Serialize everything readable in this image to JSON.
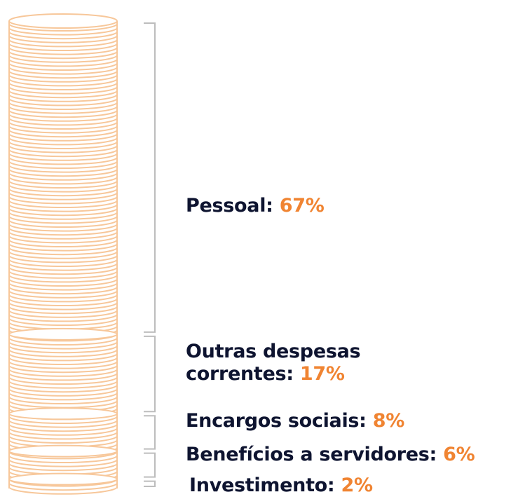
{
  "colors": {
    "coin_stroke": "#f7c79a",
    "bracket": "#bdbdbd",
    "label_text": "#0e1430",
    "percent_text": "#f08432"
  },
  "chart_data": {
    "type": "bar",
    "stacked": true,
    "categories": [
      "Pessoal",
      "Outras despesas correntes",
      "Encargos sociais",
      "Benefícios a servidores",
      "Investimento"
    ],
    "values": [
      67,
      17,
      8,
      6,
      2
    ],
    "unit": "%",
    "labels": [
      {
        "name": "Pessoal:",
        "value": "67%"
      },
      {
        "name_line1": "Outras despesas",
        "name_line2": "correntes:",
        "value": "17%"
      },
      {
        "name": "Encargos sociais:",
        "value": "8%"
      },
      {
        "name": "Benefícios a servidores:",
        "value": "6%"
      },
      {
        "name": "Investimento:",
        "value": "2%"
      }
    ]
  }
}
